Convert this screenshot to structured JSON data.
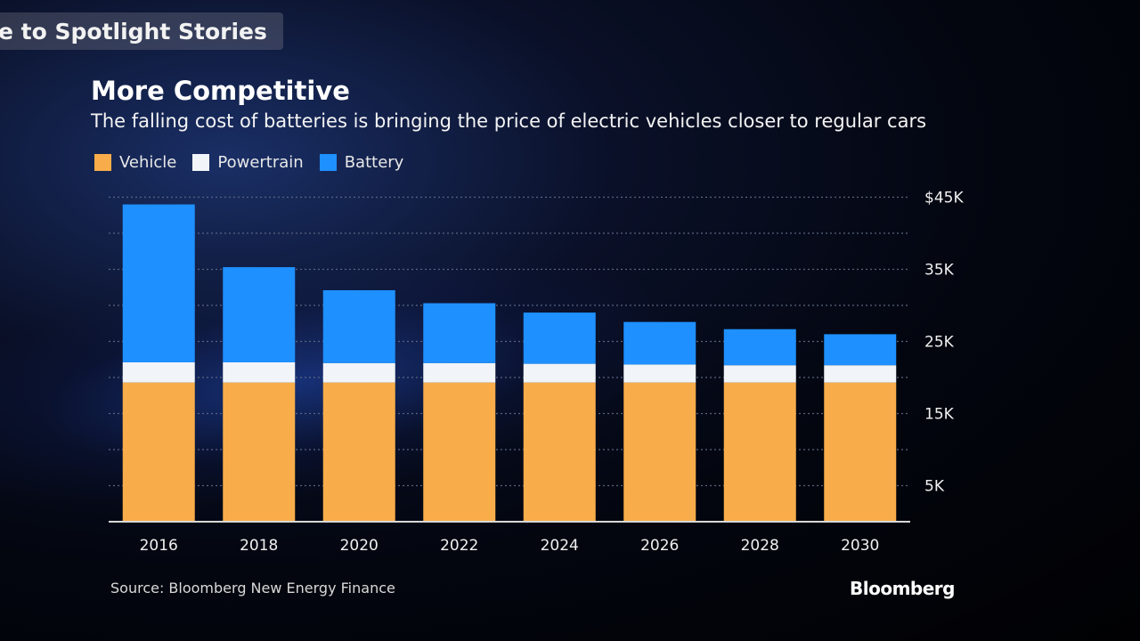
{
  "header": {
    "back_label": "e to Spotlight Stories"
  },
  "colors": {
    "vehicle": "#f8ad4a",
    "powertrain": "#f1f4f8",
    "battery": "#1e90ff",
    "grid": "#5a6480",
    "axis": "#d8d8d8"
  },
  "chart_data": {
    "type": "bar",
    "stacked": true,
    "title": "More Competitive",
    "subtitle": "The falling cost of batteries is bringing the price of electric vehicles closer to regular cars",
    "categories": [
      "2016",
      "2018",
      "2020",
      "2022",
      "2024",
      "2026",
      "2028",
      "2030"
    ],
    "series": [
      {
        "name": "Vehicle",
        "values": [
          19300,
          19300,
          19300,
          19300,
          19300,
          19300,
          19300,
          19300
        ]
      },
      {
        "name": "Powertrain",
        "values": [
          2800,
          2800,
          2700,
          2700,
          2600,
          2500,
          2400,
          2400
        ]
      },
      {
        "name": "Battery",
        "values": [
          21900,
          13200,
          10100,
          8300,
          7100,
          5900,
          5000,
          4300
        ]
      }
    ],
    "y_ticks": [
      "$45K",
      "35K",
      "25K",
      "15K",
      "5K"
    ],
    "y_tick_values": [
      45000,
      35000,
      25000,
      15000,
      5000
    ],
    "ylim": [
      0,
      45000
    ],
    "grid": true,
    "legend_position": "top-left",
    "y_axis_position": "right"
  },
  "footer": {
    "source": "Source: Bloomberg New Energy Finance",
    "brand": "Bloomberg"
  }
}
